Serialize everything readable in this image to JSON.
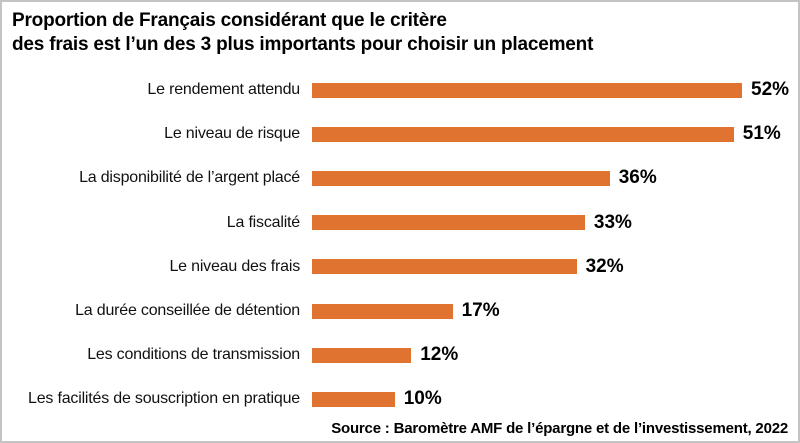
{
  "title": {
    "line1": "Proportion de Français considérant que le critère",
    "line2": "des frais est l’un des 3 plus importants pour choisir un placement"
  },
  "source": "Source : Baromètre AMF de l’épargne et de l’investissement, 2022",
  "colors": {
    "bar": "#e0732f",
    "text": "#111111",
    "title": "#000000",
    "border": "#c4c4c4",
    "background": "#ffffff"
  },
  "chart_data": {
    "type": "bar",
    "orientation": "horizontal",
    "title": "Proportion de Français considérant que le critère des frais est l’un des 3 plus importants pour choisir un placement",
    "categories": [
      "Le rendement attendu",
      "Le niveau de risque",
      "La disponibilité de l’argent placé",
      "La fiscalité",
      "Le niveau des frais",
      "La durée conseillée de détention",
      "Les conditions de transmission",
      "Les facilités de souscription en pratique"
    ],
    "values": [
      52,
      51,
      36,
      33,
      32,
      17,
      12,
      10
    ],
    "value_labels": [
      "52%",
      "51%",
      "36%",
      "33%",
      "32%",
      "17%",
      "12%",
      "10%"
    ],
    "value_suffix": "%",
    "xlim": [
      0,
      52
    ],
    "grid": false,
    "legend": false,
    "data_labels_position": "end-of-bar",
    "source": "Source : Baromètre AMF de l’épargne et de l’investissement, 2022"
  }
}
